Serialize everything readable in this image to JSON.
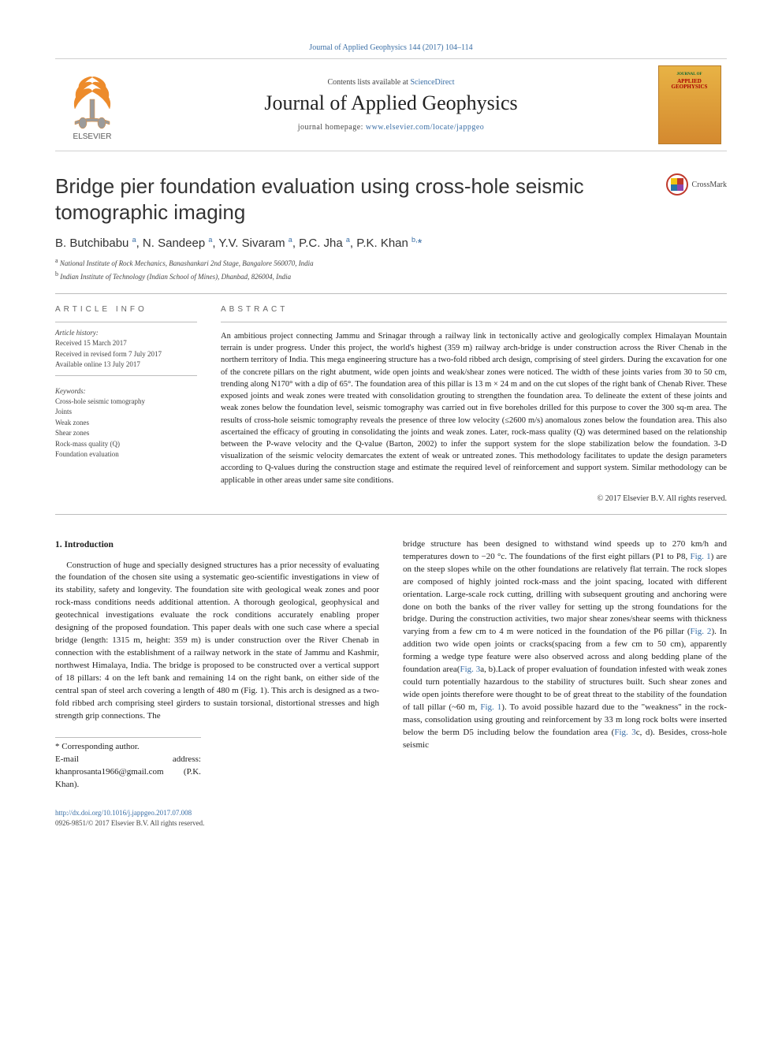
{
  "top_link": "Journal of Applied Geophysics 144 (2017) 104–114",
  "header": {
    "contents_prefix": "Contents lists available at ",
    "contents_link": "ScienceDirect",
    "journal_name": "Journal of Applied Geophysics",
    "homepage_prefix": "journal homepage: ",
    "homepage_link": "www.elsevier.com/locate/jappgeo",
    "cover_t1": "JOURNAL OF",
    "cover_t2": "APPLIED GEOPHYSICS"
  },
  "crossmark_label": "CrossMark",
  "title": "Bridge pier foundation evaluation using cross-hole seismic tomographic imaging",
  "authors_html": "B. Butchibabu <sup>a</sup>, N. Sandeep <sup>a</sup>, Y.V. Sivaram <sup>a</sup>, P.C. Jha <sup>a</sup>, P.K. Khan <sup>b,</sup><span class='star'>*</span>",
  "affiliations": [
    {
      "sup": "a",
      "text": "National Institute of Rock Mechanics, Banashankari 2nd Stage, Bangalore 560070, India"
    },
    {
      "sup": "b",
      "text": "Indian Institute of Technology (Indian School of Mines), Dhanbad, 826004, India"
    }
  ],
  "article_info_head": "ARTICLE INFO",
  "abstract_head": "ABSTRACT",
  "history_label": "Article history:",
  "history": [
    "Received 15 March 2017",
    "Received in revised form 7 July 2017",
    "Available online 13 July 2017"
  ],
  "keywords_label": "Keywords:",
  "keywords": [
    "Cross-hole seismic tomography",
    "Joints",
    "Weak zones",
    "Shear zones",
    "Rock-mass quality (Q)",
    "Foundation evaluation"
  ],
  "abstract": "An ambitious project connecting Jammu and Srinagar through a railway link in tectonically active and geologically complex Himalayan Mountain terrain is under progress. Under this project, the world's highest (359 m) railway arch-bridge is under construction across the River Chenab in the northern territory of India. This mega engineering structure has a two-fold ribbed arch design, comprising of steel girders. During the excavation for one of the concrete pillars on the right abutment, wide open joints and weak/shear zones were noticed. The width of these joints varies from 30 to 50 cm, trending along N170° with a dip of 65°. The foundation area of this pillar is 13 m × 24 m and on the cut slopes of the right bank of Chenab River. These exposed joints and weak zones were treated with consolidation grouting to strengthen the foundation area. To delineate the extent of these joints and weak zones below the foundation level, seismic tomography was carried out in five boreholes drilled for this purpose to cover the 300 sq-m area. The results of cross-hole seismic tomography reveals the presence of three low velocity (≤2600 m/s) anomalous zones below the foundation area. This also ascertained the efficacy of grouting in consolidating the joints and weak zones. Later, rock-mass quality (Q) was determined based on the relationship between the P-wave velocity and the Q-value (Barton, 2002) to infer the support system for the slope stabilization below the foundation. 3-D visualization of the seismic velocity demarcates the extent of weak or untreated zones. This methodology facilitates to update the design parameters according to Q-values during the construction stage and estimate the required level of reinforcement and support system. Similar methodology can be applicable in other areas under same site conditions.",
  "copyright": "© 2017 Elsevier B.V. All rights reserved.",
  "section1_head": "1. Introduction",
  "col1_para": "Construction of huge and specially designed structures has a prior necessity of evaluating the foundation of the chosen site using a systematic geo-scientific investigations in view of its stability, safety and longevity. The foundation site with geological weak zones and poor rock-mass conditions needs additional attention. A thorough geological, geophysical and geotechnical investigations evaluate the rock conditions accurately enabling proper designing of the proposed foundation. This paper deals with one such case where a special bridge (length: 1315 m, height: 359 m) is under construction over the River Chenab in connection with the establishment of a railway network in the state of Jammu and Kashmir, northwest Himalaya, India. The bridge is proposed to be constructed over a vertical support of 18 pillars: 4 on the left bank and remaining 14 on the right bank, on either side of the central span of steel arch covering a length of 480 m (",
  "col1_fig1": "Fig. 1",
  "col1_para_tail": "). This arch is designed as a two-fold ribbed arch comprising steel girders to sustain torsional, distortional stresses and high strength grip connections. The",
  "col2_para_parts": [
    {
      "t": "text",
      "v": "bridge structure has been designed to withstand wind speeds up to 270 km/h and temperatures down to −20 °c. The foundations of the first eight pillars (P1 to P8, "
    },
    {
      "t": "link",
      "v": "Fig. 1"
    },
    {
      "t": "text",
      "v": ") are on the steep slopes while on the other foundations are relatively flat terrain. The rock slopes are composed of highly jointed rock-mass and the joint spacing, located with different orientation. Large-scale rock cutting, drilling with subsequent grouting and anchoring were done on both the banks of the river valley for setting up the strong foundations for the bridge. During the construction activities, two major shear zones/shear seems with thickness varying from a few cm to 4 m were noticed in the foundation of the P6 pillar ("
    },
    {
      "t": "link",
      "v": "Fig. 2"
    },
    {
      "t": "text",
      "v": "). In addition two wide open joints or cracks(spacing from a few cm to 50 cm), apparently forming a wedge type feature were also observed across and along bedding plane of the foundation area("
    },
    {
      "t": "link",
      "v": "Fig. 3"
    },
    {
      "t": "text",
      "v": "a, b).Lack of proper evaluation of foundation infested with weak zones could turn potentially hazardous to the stability of structures built. Such shear zones and wide open joints therefore were thought to be of great threat to the stability of the foundation of tall pillar (~60 m, "
    },
    {
      "t": "link",
      "v": "Fig. 1"
    },
    {
      "t": "text",
      "v": "). To avoid possible hazard due to the \"weakness\" in the rock-mass, consolidation using grouting and reinforcement by 33 m long rock bolts were inserted below the berm D5 including below the foundation area ("
    },
    {
      "t": "link",
      "v": "Fig. 3"
    },
    {
      "t": "text",
      "v": "c, d). Besides, cross-hole seismic"
    }
  ],
  "footnote": {
    "corresp": "* Corresponding author.",
    "email_label": "E-mail address:",
    "email": "khanprosanta1966@gmail.com",
    "email_person": "(P.K. Khan)."
  },
  "bottom": {
    "doi": "http://dx.doi.org/10.1016/j.jappgeo.2017.07.008",
    "issn_line": "0926-9851/© 2017 Elsevier B.V. All rights reserved."
  },
  "colors": {
    "link": "#3a6ea5",
    "text": "#222222",
    "rule": "#bcbcbc",
    "elsevier_orange": "#ed8b2b",
    "elsevier_gray": "#9b9b9b"
  }
}
